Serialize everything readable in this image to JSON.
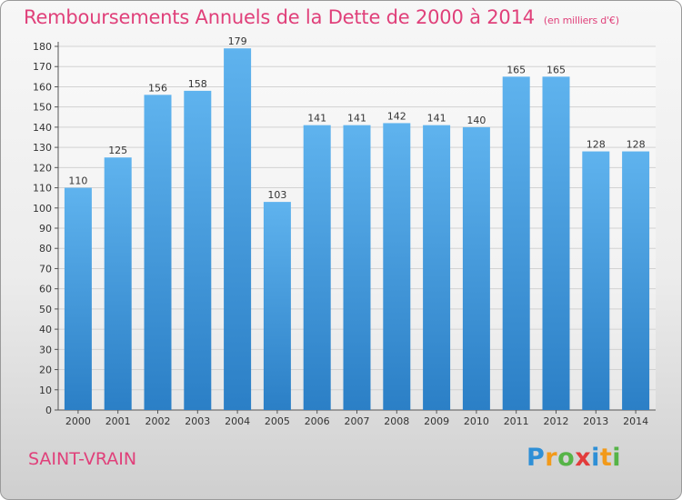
{
  "header": {
    "title": "Remboursements Annuels de la Dette de 2000 à 2014",
    "unit": "(en milliers d'€)"
  },
  "footer": {
    "commune": "SAINT-VRAIN",
    "logo": [
      "P",
      "r",
      "o",
      "x",
      "i",
      "t",
      "i"
    ]
  },
  "colors": {
    "bar_top": "#5fb3ee",
    "bar_bottom": "#2b7fc6",
    "title": "#e0407a"
  },
  "chart_data": {
    "type": "bar",
    "title": "Remboursements Annuels de la Dette de 2000 à 2014",
    "xlabel": "",
    "ylabel": "",
    "categories": [
      "2000",
      "2001",
      "2002",
      "2003",
      "2004",
      "2005",
      "2006",
      "2007",
      "2008",
      "2009",
      "2010",
      "2011",
      "2012",
      "2013",
      "2014"
    ],
    "values": [
      110,
      125,
      156,
      158,
      179,
      103,
      141,
      141,
      142,
      141,
      140,
      165,
      165,
      128,
      128
    ],
    "ylim": [
      0,
      180
    ],
    "yticks": [
      0,
      10,
      20,
      30,
      40,
      50,
      60,
      70,
      80,
      90,
      100,
      110,
      120,
      130,
      140,
      150,
      160,
      170,
      180
    ],
    "grid": true,
    "legend": "none"
  }
}
